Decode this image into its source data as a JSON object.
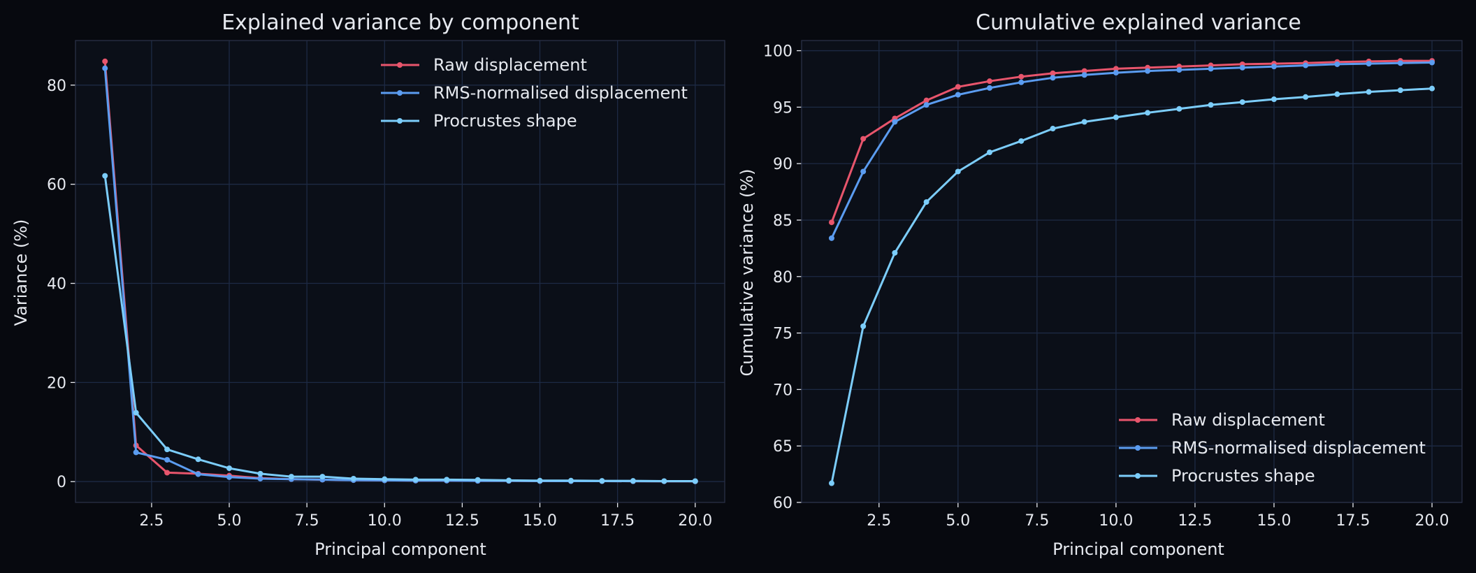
{
  "colors": {
    "background": "#07090f",
    "axes_face": "#0b0f18",
    "grid": "#1d2a44",
    "spine": "#2a3146",
    "text": "#e6e9ef",
    "series": [
      "#e8556c",
      "#5b9cf0",
      "#7ccdfa"
    ]
  },
  "chart_data": [
    {
      "type": "line",
      "title": "Explained variance by component",
      "xlabel": "Principal component",
      "ylabel": "Variance (%)",
      "xlim": [
        0.05,
        20.95
      ],
      "ylim": [
        -4.2,
        89
      ],
      "xticks": [
        2.5,
        5.0,
        7.5,
        10.0,
        12.5,
        15.0,
        17.5,
        20.0
      ],
      "xtick_labels": [
        "2.5",
        "5.0",
        "7.5",
        "10.0",
        "12.5",
        "15.0",
        "17.5",
        "20.0"
      ],
      "yticks": [
        0,
        20,
        40,
        60,
        80
      ],
      "ytick_labels": [
        "0",
        "20",
        "40",
        "60",
        "80"
      ],
      "grid": true,
      "legend_position": "top-right",
      "x": [
        1,
        2,
        3,
        4,
        5,
        6,
        7,
        8,
        9,
        10,
        11,
        12,
        13,
        14,
        15,
        16,
        17,
        18,
        19,
        20
      ],
      "series": [
        {
          "name": "Raw displacement",
          "values": [
            84.8,
            7.3,
            1.8,
            1.6,
            1.2,
            0.7,
            0.5,
            0.4,
            0.3,
            0.25,
            0.2,
            0.2,
            0.15,
            0.15,
            0.12,
            0.1,
            0.1,
            0.08,
            0.07,
            0.06
          ]
        },
        {
          "name": "RMS-normalised displacement",
          "values": [
            83.4,
            5.9,
            4.4,
            1.5,
            0.9,
            0.6,
            0.5,
            0.4,
            0.3,
            0.25,
            0.2,
            0.2,
            0.15,
            0.15,
            0.12,
            0.1,
            0.1,
            0.08,
            0.07,
            0.06
          ]
        },
        {
          "name": "Procrustes shape",
          "values": [
            61.7,
            13.9,
            6.5,
            4.5,
            2.7,
            1.6,
            1.0,
            1.0,
            0.6,
            0.5,
            0.4,
            0.4,
            0.35,
            0.25,
            0.2,
            0.2,
            0.15,
            0.15,
            0.1,
            0.1
          ]
        }
      ]
    },
    {
      "type": "line",
      "title": "Cumulative explained variance",
      "xlabel": "Principal component",
      "ylabel": "Cumulative variance (%)",
      "xlim": [
        0.05,
        20.95
      ],
      "ylim": [
        60,
        100.9
      ],
      "xticks": [
        2.5,
        5.0,
        7.5,
        10.0,
        12.5,
        15.0,
        17.5,
        20.0
      ],
      "xtick_labels": [
        "2.5",
        "5.0",
        "7.5",
        "10.0",
        "12.5",
        "15.0",
        "17.5",
        "20.0"
      ],
      "yticks": [
        60,
        65,
        70,
        75,
        80,
        85,
        90,
        95,
        100
      ],
      "ytick_labels": [
        "60",
        "65",
        "70",
        "75",
        "80",
        "85",
        "90",
        "95",
        "100"
      ],
      "grid": true,
      "legend_position": "bottom-right",
      "x": [
        1,
        2,
        3,
        4,
        5,
        6,
        7,
        8,
        9,
        10,
        11,
        12,
        13,
        14,
        15,
        16,
        17,
        18,
        19,
        20
      ],
      "series": [
        {
          "name": "Raw displacement",
          "values": [
            84.8,
            92.2,
            94.0,
            95.6,
            96.8,
            97.3,
            97.7,
            98.0,
            98.2,
            98.4,
            98.5,
            98.6,
            98.7,
            98.8,
            98.85,
            98.9,
            99.0,
            99.05,
            99.1,
            99.1
          ]
        },
        {
          "name": "RMS-normalised displacement",
          "values": [
            83.4,
            89.3,
            93.7,
            95.2,
            96.1,
            96.7,
            97.2,
            97.6,
            97.85,
            98.05,
            98.2,
            98.3,
            98.4,
            98.5,
            98.6,
            98.7,
            98.8,
            98.85,
            98.9,
            98.95
          ]
        },
        {
          "name": "Procrustes shape",
          "values": [
            61.7,
            75.6,
            82.1,
            86.6,
            89.3,
            91.0,
            92.0,
            93.1,
            93.7,
            94.1,
            94.5,
            94.85,
            95.2,
            95.45,
            95.7,
            95.9,
            96.15,
            96.35,
            96.5,
            96.65
          ]
        }
      ]
    }
  ]
}
